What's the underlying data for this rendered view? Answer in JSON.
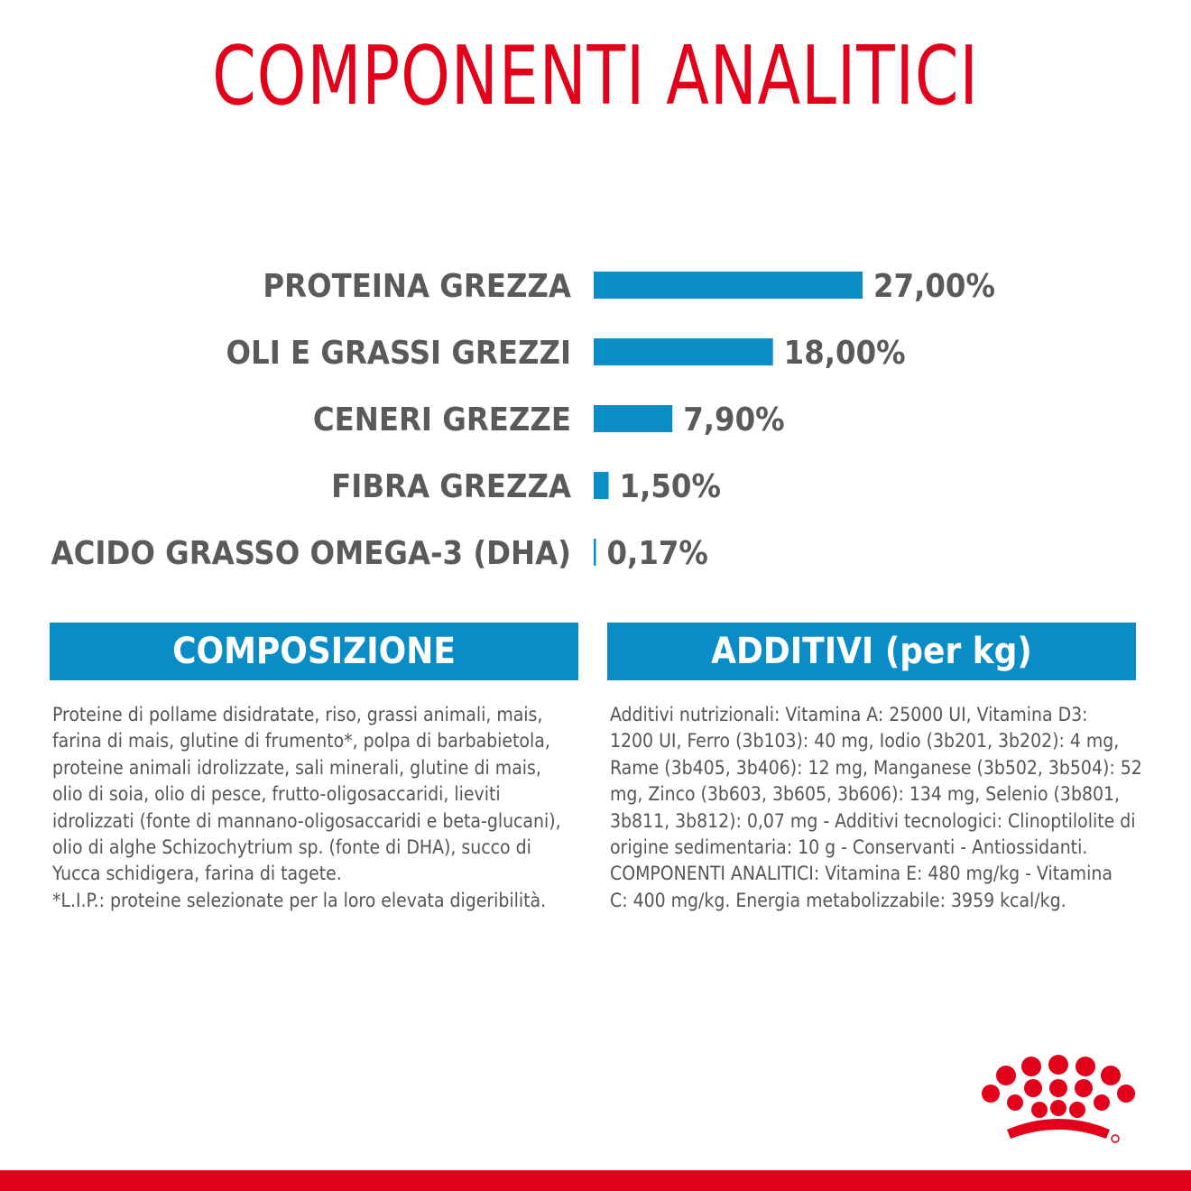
{
  "title": "COMPONENTI ANALITICI",
  "colors": {
    "title": "#e2001a",
    "bar": "#0a8cc7",
    "label": "#5a5a5a",
    "header_bg": "#0a8cc7",
    "body_text": "#555555",
    "accent": "#e2001a"
  },
  "chart_data": {
    "type": "bar",
    "orientation": "horizontal",
    "categories": [
      "PROTEINA GREZZA",
      "OLI E GRASSI GREZZI",
      "CENERI GREZZE",
      "FIBRA GREZZA",
      "ACIDO GRASSO OMEGA-3 (DHA)"
    ],
    "values": [
      27.0,
      18.0,
      7.9,
      1.5,
      0.17
    ],
    "value_labels": [
      "27,00%",
      "18,00%",
      "7,90%",
      "1,50%",
      "0,17%"
    ],
    "unit": "%",
    "xlim": [
      0,
      27
    ],
    "grid": false,
    "legend": "none"
  },
  "composizione": {
    "header": "COMPOSIZIONE",
    "lines": [
      "Proteine di pollame disidratate, riso, grassi animali, mais,",
      "farina di mais, glutine di frumento*, polpa di barbabietola,",
      "proteine animali idrolizzate, sali minerali, glutine di mais,",
      "olio di soia, olio di pesce, frutto-oligosaccaridi, lieviti",
      "idrolizzati (fonte di mannano-oligosaccaridi e beta-glucani),",
      "olio di alghe Schizochytrium sp. (fonte di DHA), succo di",
      "Yucca schidigera, farina di tagete.",
      "*L.I.P.: proteine selezionate per la loro elevata digeribilità."
    ]
  },
  "additivi": {
    "header": "ADDITIVI (per kg)",
    "lines": [
      "Additivi nutrizionali: Vitamina A: 25000 UI, Vitamina D3:",
      "1200 UI, Ferro (3b103): 40 mg, Iodio (3b201, 3b202): 4 mg,",
      "Rame (3b405, 3b406): 12 mg, Manganese (3b502, 3b504): 52",
      "mg, Zinco (3b603, 3b605, 3b606): 134 mg, Selenio (3b801,",
      "3b811, 3b812): 0,07 mg - Additivi tecnologici: Clinoptilolite di",
      "origine sedimentaria: 10 g - Conservanti - Antiossidanti.",
      "COMPONENTI ANALITICI: Vitamina E: 480 mg/kg - Vitamina",
      "C: 400 mg/kg. Energia metabolizzabile: 3959 kcal/kg."
    ]
  },
  "logo": {
    "icon": "royal-canin-crown-logo"
  }
}
